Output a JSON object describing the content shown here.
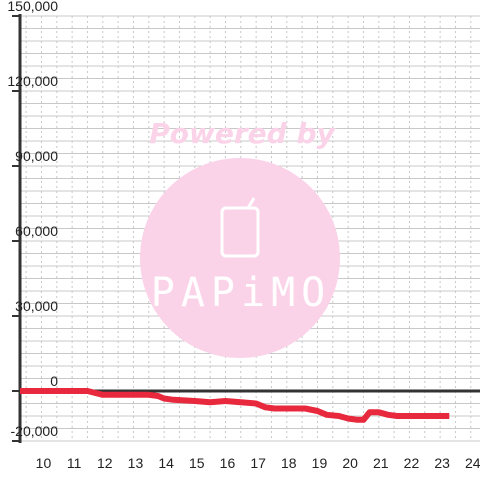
{
  "chart_data": {
    "type": "line",
    "title": "",
    "xlabel": "",
    "ylabel": "",
    "xlim": [
      9.3,
      24.3
    ],
    "ylim": [
      -20000,
      150000
    ],
    "x_ticks": [
      10,
      11,
      12,
      13,
      14,
      15,
      16,
      17,
      18,
      19,
      20,
      21,
      22,
      23,
      24
    ],
    "y_ticks": [
      -20000,
      0,
      30000,
      60000,
      90000,
      120000,
      150000
    ],
    "y_tick_labels": [
      "-20,000",
      "0",
      "30,000",
      "60,000",
      "90,000",
      "120,000",
      "150,000"
    ],
    "grid": true,
    "legend": "none",
    "series": [
      {
        "color": "#e8283c",
        "x": [
          9.3,
          11.0,
          11.5,
          12.0,
          12.5,
          13.0,
          13.5,
          13.8,
          14.0,
          14.3,
          15.0,
          15.5,
          16.0,
          16.5,
          17.0,
          17.3,
          17.6,
          18.0,
          18.6,
          19.0,
          19.3,
          19.7,
          20.0,
          20.3,
          20.5,
          20.7,
          21.0,
          21.3,
          21.6,
          22.0,
          22.6,
          23.3
        ],
        "y": [
          0,
          0,
          0,
          -1500,
          -1500,
          -1500,
          -1500,
          -2000,
          -3000,
          -3500,
          -4000,
          -4500,
          -4000,
          -4500,
          -5000,
          -6500,
          -7000,
          -7000,
          -7000,
          -8000,
          -9500,
          -10000,
          -11000,
          -11500,
          -11500,
          -8500,
          -8500,
          -9500,
          -10000,
          -10000,
          -10000,
          -10000
        ]
      }
    ]
  },
  "watermark": {
    "text": "Powered by",
    "logo": "PAPiMO",
    "text_color": "#fbd3e9",
    "circle_color": "#fbd3e9"
  },
  "colors": {
    "grid": "#c8c8c8",
    "axis": "#333333",
    "line": "#e8283c"
  }
}
